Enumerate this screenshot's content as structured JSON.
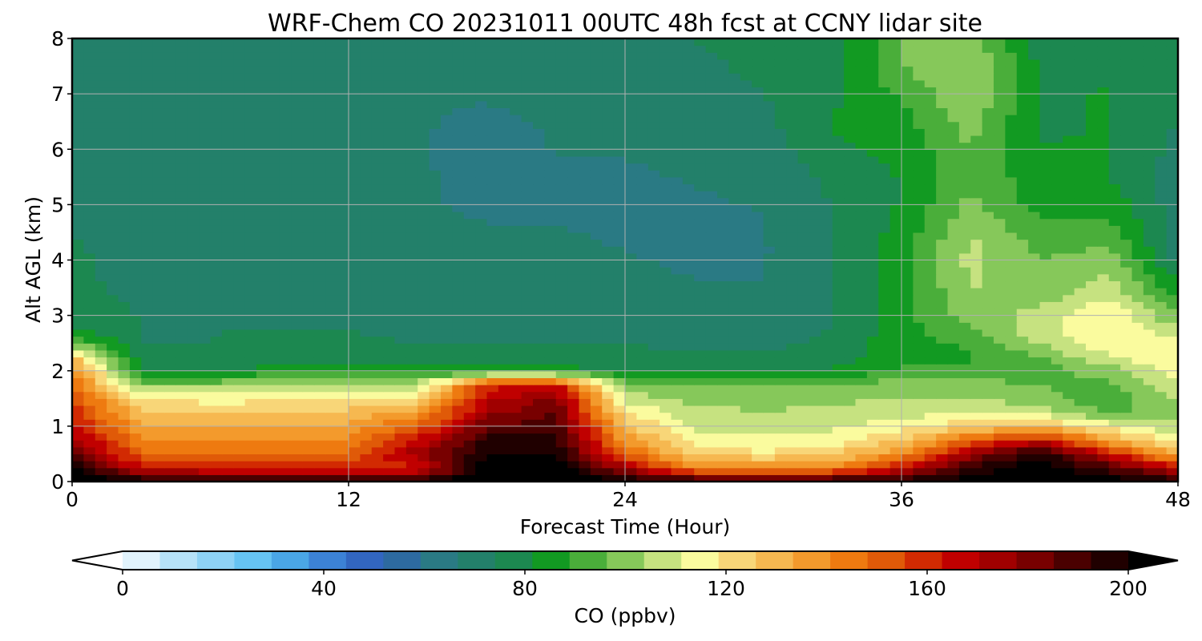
{
  "chart_data": {
    "type": "heatmap",
    "title": "WRF-Chem CO  20231011 00UTC 48h fcst at CCNY lidar site",
    "xlabel": "Forecast Time (Hour)",
    "ylabel": "Alt AGL (km)",
    "xlim": [
      0,
      48
    ],
    "ylim": [
      0,
      8
    ],
    "xticks": [
      0,
      12,
      24,
      36,
      48
    ],
    "yticks": [
      0,
      1,
      2,
      3,
      4,
      5,
      6,
      7,
      8
    ],
    "grid": true,
    "colorbar": {
      "label": "CO  (ppbv)",
      "range": [
        0,
        200
      ],
      "ticks": [
        0,
        40,
        80,
        120,
        160,
        200
      ],
      "extend": "both",
      "orientation": "horizontal",
      "levels": [
        0,
        10,
        20,
        30,
        40,
        50,
        60,
        70,
        80,
        90,
        100,
        110,
        120,
        130,
        140,
        150,
        160,
        170,
        180,
        190,
        200
      ],
      "colors": [
        "#ffffff",
        "#e1f3fc",
        "#b6e2f8",
        "#8ed2f5",
        "#66c3f2",
        "#4aa6e6",
        "#3c82d6",
        "#3266c0",
        "#2d6aa0",
        "#2a7a84",
        "#23806a",
        "#1c8850",
        "#129a22",
        "#4aae3a",
        "#86c85a",
        "#c6e280",
        "#fafb9e",
        "#f8d678",
        "#f6b850",
        "#f39a2c",
        "#ee7a10",
        "#e05a08",
        "#d22a02",
        "#c00000",
        "#a00000",
        "#780000",
        "#4a0000",
        "#200000",
        "#000000"
      ]
    },
    "x": [
      0,
      3,
      6,
      9,
      12,
      15,
      18,
      21,
      24,
      27,
      30,
      33,
      36,
      39,
      42,
      45,
      48
    ],
    "y": [
      0,
      0.25,
      0.5,
      0.75,
      1,
      1.25,
      1.5,
      1.75,
      2,
      2.25,
      2.5,
      2.75,
      3,
      3.5,
      4,
      4.5,
      5,
      5.5,
      6,
      6.5,
      7,
      7.5,
      8
    ],
    "z": [
      [
        210,
        200,
        200,
        200,
        200,
        200,
        210,
        210,
        200,
        200,
        200,
        200,
        200,
        205,
        210,
        205,
        200
      ],
      [
        200,
        165,
        160,
        160,
        160,
        160,
        205,
        205,
        175,
        140,
        140,
        140,
        165,
        195,
        205,
        190,
        165
      ],
      [
        185,
        150,
        148,
        148,
        150,
        175,
        200,
        200,
        150,
        125,
        120,
        125,
        140,
        175,
        200,
        165,
        130
      ],
      [
        175,
        142,
        140,
        140,
        142,
        165,
        195,
        195,
        138,
        115,
        112,
        115,
        125,
        150,
        165,
        135,
        115
      ],
      [
        165,
        135,
        132,
        132,
        135,
        150,
        185,
        190,
        128,
        110,
        108,
        110,
        115,
        125,
        130,
        115,
        105
      ],
      [
        160,
        128,
        125,
        125,
        128,
        135,
        175,
        185,
        118,
        106,
        104,
        106,
        108,
        110,
        108,
        95,
        100
      ],
      [
        155,
        120,
        115,
        118,
        118,
        120,
        168,
        180,
        108,
        102,
        100,
        102,
        104,
        104,
        100,
        90,
        105
      ],
      [
        150,
        100,
        100,
        108,
        108,
        108,
        160,
        165,
        98,
        96,
        96,
        98,
        100,
        100,
        96,
        95,
        110
      ],
      [
        140,
        80,
        80,
        85,
        86,
        84,
        86,
        84,
        82,
        80,
        80,
        82,
        90,
        92,
        92,
        100,
        115
      ],
      [
        128,
        76,
        76,
        78,
        78,
        76,
        76,
        76,
        76,
        76,
        76,
        78,
        86,
        88,
        96,
        110,
        118
      ],
      [
        98,
        74,
        74,
        76,
        76,
        74,
        74,
        74,
        74,
        72,
        72,
        76,
        86,
        90,
        104,
        118,
        115
      ],
      [
        80,
        74,
        74,
        74,
        74,
        72,
        72,
        72,
        72,
        70,
        70,
        74,
        86,
        96,
        108,
        120,
        105
      ],
      [
        76,
        74,
        73,
        72,
        72,
        71,
        70,
        70,
        70,
        68,
        68,
        74,
        86,
        100,
        106,
        118,
        96
      ],
      [
        75,
        73,
        72,
        71,
        70,
        70,
        69,
        69,
        68,
        67,
        67,
        74,
        86,
        104,
        98,
        108,
        84
      ],
      [
        75,
        72,
        71,
        70,
        69,
        68,
        68,
        68,
        67,
        66,
        66,
        74,
        86,
        106,
        96,
        100,
        72
      ],
      [
        74,
        72,
        71,
        70,
        68,
        68,
        67,
        67,
        66,
        66,
        66,
        74,
        84,
        104,
        92,
        92,
        70
      ],
      [
        74,
        71,
        70,
        69,
        68,
        67,
        66,
        66,
        66,
        66,
        67,
        74,
        82,
        98,
        86,
        86,
        70
      ],
      [
        73,
        71,
        70,
        69,
        67,
        67,
        66,
        66,
        66,
        67,
        68,
        76,
        82,
        96,
        84,
        82,
        70
      ],
      [
        73,
        72,
        70,
        68,
        67,
        67,
        64,
        67,
        67,
        68,
        70,
        80,
        84,
        96,
        82,
        82,
        72
      ],
      [
        73,
        72,
        70,
        68,
        67,
        67,
        66,
        67,
        67,
        69,
        72,
        82,
        86,
        100,
        80,
        82,
        74
      ],
      [
        72,
        72,
        70,
        68,
        67,
        67,
        67,
        68,
        68,
        70,
        74,
        80,
        90,
        104,
        80,
        82,
        74
      ],
      [
        72,
        71,
        70,
        68,
        67,
        67,
        68,
        68,
        70,
        72,
        76,
        78,
        96,
        104,
        80,
        80,
        74
      ],
      [
        72,
        71,
        70,
        68,
        68,
        68,
        69,
        70,
        72,
        74,
        78,
        76,
        98,
        100,
        78,
        78,
        74
      ]
    ]
  }
}
